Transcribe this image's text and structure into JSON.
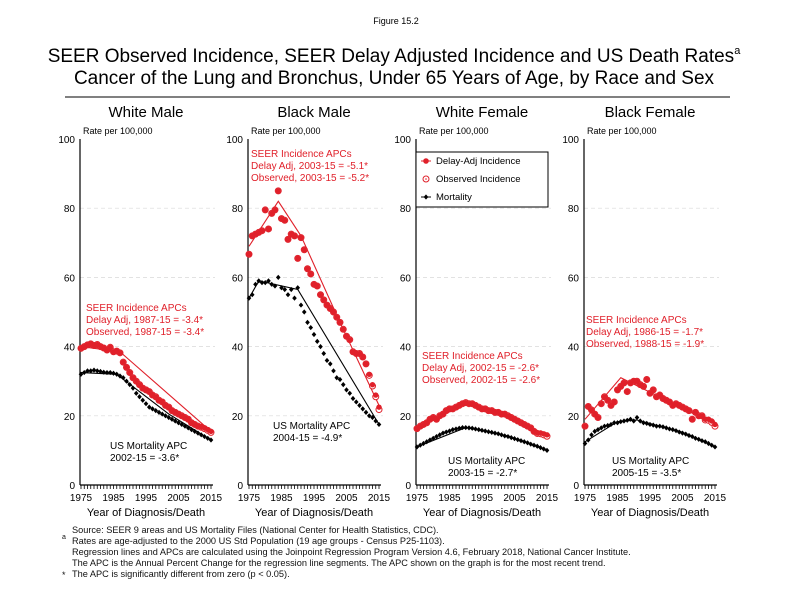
{
  "figure_label": "Figure 15.2",
  "title_line1": "SEER Observed Incidence, SEER Delay Adjusted Incidence and US Death Rates",
  "title_superscript": "a",
  "title_line2": "Cancer of the Lung and Bronchus, Under 65 Years of Age, by Race and Sex",
  "colors": {
    "incidence": "#e0202a",
    "mortality": "#000000",
    "grid": "#d8d8d8"
  },
  "legend": {
    "delay_adj": "Delay-Adj Incidence",
    "observed": "Observed Incidence",
    "mortality": "Mortality"
  },
  "footnotes": {
    "source": "Source: SEER 9 areas and US Mortality Files (National Center for Health Statistics, CDC).",
    "mark_a": "a",
    "rates": "Rates are age-adjusted to the 2000 US Std Population (19 age groups - Census P25-1103).",
    "regression": "Regression lines and APCs are calculated using the Joinpoint Regression Program Version 4.6, February 2018, National Cancer Institute.",
    "apc": "The APC is the Annual Percent Change for the regression line segments. The APC shown on the graph is for the most recent trend.",
    "mark_star": "*",
    "significance": "The APC is significantly different from zero (p < 0.05)."
  },
  "chart_data": [
    {
      "type": "line",
      "title": "White Male",
      "ylabel": "Rate per 100,000",
      "xlabel": "Year of Diagnosis/Death",
      "ylim": [
        0,
        100
      ],
      "yticks": [
        "0",
        "20",
        "40",
        "60",
        "80",
        "100"
      ],
      "xticks": [
        "1975",
        "1985",
        "1995",
        "2005",
        "2015"
      ],
      "xlim": [
        1975,
        2015
      ],
      "grid": true,
      "annotations": {
        "apc_title": "SEER Incidence APCs",
        "delay_adj": "Delay Adj, 1987-15 = -3.4*",
        "observed": "Observed, 1987-15 = -3.4*",
        "mort_title": "US Mortality APC",
        "mort_apc": "2002-15 = -3.6*"
      },
      "series": [
        {
          "name": "Delay-Adj Incidence",
          "values": [
            39.5,
            40,
            40.5,
            40.8,
            40.3,
            40.6,
            40,
            39.6,
            39,
            39.8,
            38.5,
            38.7,
            38.2,
            35.5,
            34,
            32.5,
            31,
            30,
            29,
            28,
            27.5,
            27,
            26,
            25.5,
            24.5,
            24,
            23,
            22.5,
            21.5,
            21,
            20.5,
            20,
            19.5,
            19,
            18,
            17.5,
            17,
            16.8,
            16.5,
            16,
            15.5
          ]
        },
        {
          "name": "Observed Incidence",
          "values": [
            39.5,
            40,
            40.5,
            40.8,
            40.3,
            40.6,
            40,
            39.6,
            39,
            39.8,
            38.5,
            38.7,
            38.2,
            35.5,
            34,
            32.5,
            31,
            30,
            29,
            28,
            27.5,
            27,
            26,
            25.5,
            24.5,
            24,
            23,
            22.5,
            21.5,
            21,
            20.5,
            20,
            19.5,
            19,
            18,
            17.5,
            17,
            16.7,
            16.3,
            15.8,
            15.2
          ]
        },
        {
          "name": "Mortality",
          "values": [
            32,
            32.5,
            33,
            33,
            33.2,
            33,
            32.8,
            32.6,
            32.5,
            32.5,
            32.3,
            32,
            31.5,
            31,
            30,
            29,
            28,
            26.5,
            25.5,
            24.5,
            23.5,
            22.5,
            22,
            21.5,
            21,
            20.5,
            20,
            19.5,
            19,
            18.5,
            18,
            17.5,
            17,
            16.5,
            16,
            15.5,
            15,
            14.5,
            14,
            13.5,
            13
          ]
        }
      ],
      "regression": {
        "incidence": [
          [
            1975,
            40
          ],
          [
            1987,
            38.5
          ],
          [
            2015,
            15.5
          ]
        ],
        "mortality": [
          [
            1975,
            32.5
          ],
          [
            1986,
            32
          ],
          [
            2002,
            20.5
          ],
          [
            2015,
            13
          ]
        ]
      }
    },
    {
      "type": "line",
      "title": "Black Male",
      "ylabel": "Rate per 100,000",
      "xlabel": "Year of Diagnosis/Death",
      "ylim": [
        0,
        100
      ],
      "yticks": [
        "0",
        "20",
        "40",
        "60",
        "80",
        "100"
      ],
      "xticks": [
        "1975",
        "1985",
        "1995",
        "2005",
        "2015"
      ],
      "xlim": [
        1975,
        2015
      ],
      "grid": true,
      "annotations": {
        "apc_title": "SEER Incidence APCs",
        "delay_adj": "Delay Adj, 2003-15 = -5.1*",
        "observed": "Observed, 2003-15 = -5.2*",
        "mort_title": "US Mortality APC",
        "mort_apc": "2004-15 = -4.9*"
      },
      "series": [
        {
          "name": "Delay-Adj Incidence",
          "values": [
            66.7,
            72,
            72.5,
            73,
            73.5,
            79.5,
            74,
            78.5,
            79.5,
            85,
            77,
            76.5,
            71,
            72.5,
            72,
            65.5,
            71.5,
            68,
            62.5,
            61,
            58,
            57.5,
            55,
            53.5,
            52,
            51,
            50,
            48.5,
            47,
            45,
            43,
            42,
            38.5,
            38,
            38,
            37,
            35,
            32,
            29,
            26,
            22.5
          ]
        },
        {
          "name": "Observed Incidence",
          "values": [
            66.7,
            72,
            72.5,
            73,
            73.5,
            79.5,
            74,
            78.5,
            79.5,
            85,
            77,
            76.5,
            71,
            72.5,
            72,
            65.5,
            71.5,
            68,
            62.5,
            61,
            58,
            57.5,
            55,
            53.5,
            52,
            51,
            50,
            48.5,
            47,
            45,
            43,
            42,
            38.5,
            38,
            38,
            37,
            35,
            31.7,
            28.6,
            25.5,
            21.8
          ]
        },
        {
          "name": "Mortality",
          "values": [
            54,
            55,
            58,
            59,
            58.5,
            58.5,
            59,
            58,
            57.5,
            60,
            57,
            56.5,
            55,
            56.5,
            54,
            57,
            52,
            50,
            47,
            45.5,
            43.5,
            41.5,
            40,
            38,
            36,
            35,
            33,
            31,
            30.5,
            29,
            27.5,
            26.5,
            25,
            24,
            23,
            22,
            21,
            20,
            19.5,
            18.5,
            17.5
          ]
        }
      ],
      "regression": {
        "incidence": [
          [
            1975,
            69
          ],
          [
            1984,
            82
          ],
          [
            1991,
            72
          ],
          [
            2003,
            47
          ],
          [
            2015,
            23
          ]
        ],
        "mortality": [
          [
            1975,
            54
          ],
          [
            1978,
            59
          ],
          [
            1990,
            56.5
          ],
          [
            2015,
            17.5
          ]
        ]
      }
    },
    {
      "type": "line",
      "title": "White Female",
      "ylabel": "Rate per 100,000",
      "xlabel": "Year of Diagnosis/Death",
      "ylim": [
        0,
        100
      ],
      "yticks": [
        "0",
        "20",
        "40",
        "60",
        "80",
        "100"
      ],
      "xticks": [
        "1975",
        "1985",
        "1995",
        "2005",
        "2015"
      ],
      "xlim": [
        1975,
        2015
      ],
      "grid": true,
      "legend_position": "top-left",
      "annotations": {
        "apc_title": "SEER Incidence APCs",
        "delay_adj": "Delay Adj, 2002-15 = -2.6*",
        "observed": "Observed, 2002-15 = -2.6*",
        "mort_title": "US Mortality APC",
        "mort_apc": "2003-15 = -2.7*"
      },
      "series": [
        {
          "name": "Delay-Adj Incidence",
          "values": [
            16.3,
            17,
            17.5,
            18,
            19,
            19.5,
            19,
            20,
            20.5,
            21.5,
            22,
            22,
            22.5,
            23,
            23.5,
            23.8,
            23.5,
            23.5,
            23,
            22.5,
            22,
            22,
            21.5,
            21.5,
            21,
            21,
            20.5,
            20.5,
            20,
            19.5,
            19,
            18.5,
            18,
            17.5,
            17,
            16.5,
            15.5,
            15,
            15,
            14.8,
            14.5
          ]
        },
        {
          "name": "Observed Incidence",
          "values": [
            16.3,
            17,
            17.5,
            18,
            19,
            19.5,
            19,
            20,
            20.5,
            21.5,
            22,
            22,
            22.5,
            23,
            23.5,
            23.8,
            23.5,
            23.5,
            23,
            22.5,
            22,
            22,
            21.5,
            21.5,
            21,
            21,
            20.5,
            20.5,
            20,
            19.5,
            19,
            18.5,
            18,
            17.5,
            17,
            16.5,
            15.5,
            14.9,
            14.8,
            14.5,
            14.1
          ]
        },
        {
          "name": "Mortality",
          "values": [
            11,
            11.5,
            12,
            12.5,
            13,
            13.5,
            14,
            14.5,
            15,
            15.3,
            15.6,
            16,
            16.2,
            16.4,
            16.6,
            16.6,
            16.5,
            16.4,
            16.2,
            16,
            15.8,
            15.6,
            15.4,
            15.2,
            15,
            14.8,
            14.5,
            14.2,
            14,
            13.7,
            13.4,
            13.1,
            12.8,
            12.5,
            12.2,
            11.8,
            11.5,
            11.2,
            10.8,
            10.4,
            10
          ]
        }
      ],
      "regression": {
        "incidence": [
          [
            1975,
            16.5
          ],
          [
            1990,
            23.5
          ],
          [
            2002,
            20
          ],
          [
            2015,
            14.5
          ]
        ],
        "mortality": [
          [
            1975,
            11
          ],
          [
            1990,
            16.6
          ],
          [
            2003,
            14.2
          ],
          [
            2015,
            10
          ]
        ]
      }
    },
    {
      "type": "line",
      "title": "Black Female",
      "ylabel": "Rate per 100,000",
      "xlabel": "Year of Diagnosis/Death",
      "ylim": [
        0,
        100
      ],
      "yticks": [
        "0",
        "20",
        "40",
        "60",
        "80",
        "100"
      ],
      "xticks": [
        "1975",
        "1985",
        "1995",
        "2005",
        "2015"
      ],
      "xlim": [
        1975,
        2015
      ],
      "grid": true,
      "annotations": {
        "apc_title": "SEER Incidence APCs",
        "delay_adj": "Delay Adj, 1986-15 = -1.7*",
        "observed": "Observed, 1988-15 = -1.9*",
        "mort_title": "US Mortality APC",
        "mort_apc": "2005-15 = -3.5*"
      },
      "series": [
        {
          "name": "Delay-Adj Incidence",
          "values": [
            17,
            22.7,
            21.7,
            20.5,
            19.5,
            23.5,
            25.5,
            24.5,
            23,
            24,
            27.5,
            28.5,
            29.5,
            27,
            29.5,
            30,
            30,
            29,
            28.5,
            30.5,
            26.5,
            27.5,
            25.5,
            26,
            25,
            24.5,
            24,
            23,
            23.5,
            23,
            22.5,
            22,
            21.5,
            19,
            21,
            20,
            20,
            19,
            19,
            18.5,
            17.5
          ]
        },
        {
          "name": "Observed Incidence",
          "values": [
            17,
            22.7,
            21.7,
            20.5,
            19.5,
            23.5,
            25.5,
            24.5,
            23,
            24,
            27.5,
            28.5,
            29.5,
            27,
            29.5,
            30,
            30,
            29,
            28.5,
            30.5,
            26.5,
            27.5,
            25.5,
            26,
            25,
            24.5,
            24,
            23,
            23.5,
            23,
            22.5,
            22,
            21.5,
            19,
            21,
            20,
            20,
            18.8,
            18.7,
            18.1,
            17
          ]
        },
        {
          "name": "Mortality",
          "values": [
            12,
            13,
            14.5,
            15.5,
            16,
            16.5,
            17,
            17.2,
            17.5,
            18,
            18,
            18.3,
            18.5,
            18.7,
            19,
            18.5,
            19.5,
            18.5,
            18,
            17.8,
            17.5,
            17.3,
            17,
            17,
            16.8,
            16.5,
            16.2,
            16,
            15.7,
            15.3,
            15,
            14.7,
            14.3,
            14,
            13.5,
            13.2,
            12.8,
            12.5,
            12,
            11.5,
            11
          ]
        }
      ],
      "regression": {
        "incidence": [
          [
            1975,
            19
          ],
          [
            1986,
            31
          ],
          [
            2015,
            17.5
          ]
        ],
        "mortality": [
          [
            1975,
            12.5
          ],
          [
            1985,
            18.3
          ],
          [
            1991,
            18.8
          ],
          [
            2005,
            15.3
          ],
          [
            2015,
            11
          ]
        ]
      }
    }
  ]
}
